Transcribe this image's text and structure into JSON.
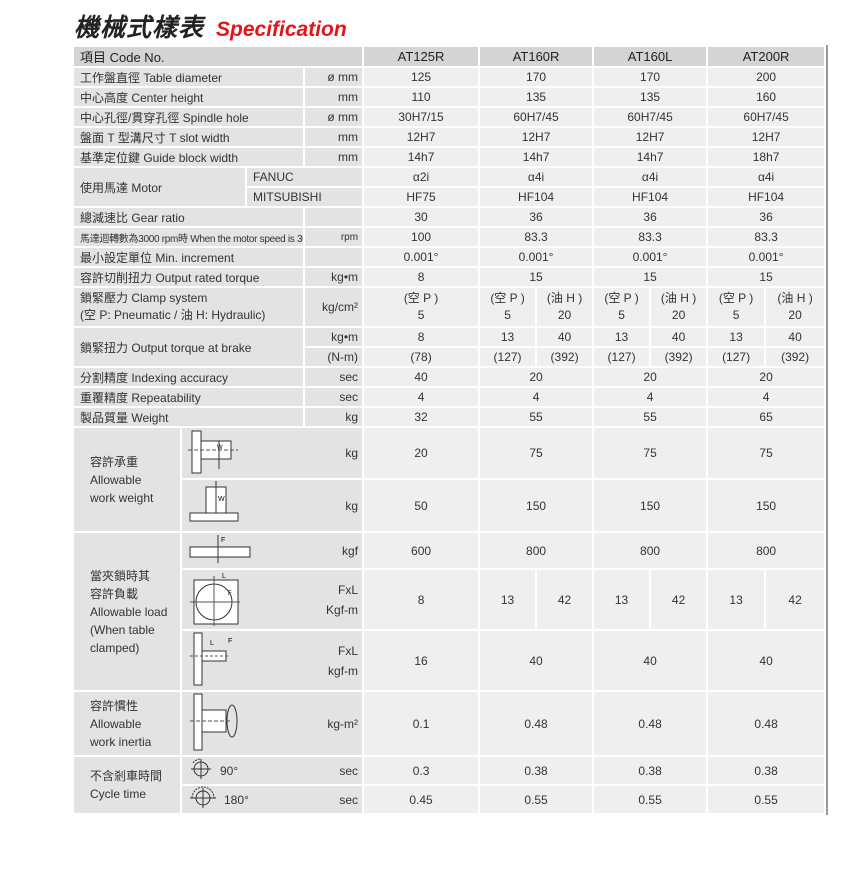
{
  "title": {
    "zh": "機械式樣表",
    "en": "Specification"
  },
  "header": {
    "label": "項目 Code No.",
    "models": [
      "AT125R",
      "AT160R",
      "AT160L",
      "AT200R"
    ]
  },
  "rows": [
    {
      "type": "simple",
      "label": "工作盤直徑 Table diameter",
      "unit": "ø mm",
      "values": [
        "125",
        "170",
        "170",
        "200"
      ]
    },
    {
      "type": "simple",
      "label": "中心高度 Center height",
      "unit": "mm",
      "values": [
        "110",
        "135",
        "135",
        "160"
      ]
    },
    {
      "type": "simple",
      "label": "中心孔徑/貫穿孔徑 Spindle hole",
      "unit": "ø mm",
      "values": [
        "30H7/15",
        "60H7/45",
        "60H7/45",
        "60H7/45"
      ]
    },
    {
      "type": "simple",
      "label": "盤面 T 型溝尺寸 T slot width",
      "unit": "mm",
      "values": [
        "12H7",
        "12H7",
        "12H7",
        "12H7"
      ]
    },
    {
      "type": "simple",
      "label": "基準定位鍵 Guide block width",
      "unit": "mm",
      "values": [
        "14h7",
        "14h7",
        "14h7",
        "18h7"
      ]
    },
    {
      "type": "motor",
      "label": "使用馬達 Motor",
      "sub": [
        {
          "label": "FANUC",
          "values": [
            "α2i",
            "α4i",
            "α4i",
            "α4i"
          ]
        },
        {
          "label": "MITSUBISHI",
          "values": [
            "HF75",
            "HF104",
            "HF104",
            "HF104"
          ]
        }
      ]
    },
    {
      "type": "simple",
      "label": "總減速比 Gear ratio",
      "unit": "",
      "values": [
        "30",
        "36",
        "36",
        "36"
      ]
    },
    {
      "type": "simple",
      "label": "馬達迴轉數為3000 rpm時 When the motor speed is 3000 rpm",
      "unit": "rpm",
      "values": [
        "100",
        "83.3",
        "83.3",
        "83.3"
      ],
      "small": true
    },
    {
      "type": "simple",
      "label": "最小設定單位 Min. increment",
      "unit": "",
      "values": [
        "0.001°",
        "0.001°",
        "0.001°",
        "0.001°"
      ]
    },
    {
      "type": "simple",
      "label": "容許切削扭力 Output rated torque",
      "unit": "kg•m",
      "values": [
        "8",
        "15",
        "15",
        "15"
      ]
    },
    {
      "type": "simple",
      "label": "鎖緊壓力  Clamp system\n(空 P: Pneumatic / 油 H: Hydraulic)",
      "unit": "kg/cm²",
      "values": [
        "(空 P )\n5",
        [
          "(空 P )\n5",
          "(油 H )\n20"
        ],
        [
          "(空 P )\n5",
          "(油 H )\n20"
        ],
        [
          "(空 P )\n5",
          "(油 H )\n20"
        ]
      ],
      "multi": true
    },
    {
      "type": "brake",
      "label": "鎖緊扭力 Output torque at brake",
      "sub": [
        {
          "unit": "kg•m",
          "values": [
            "8",
            [
              "13",
              "40"
            ],
            [
              "13",
              "40"
            ],
            [
              "13",
              "40"
            ]
          ]
        },
        {
          "unit": "(N-m)",
          "values": [
            "(78)",
            [
              "(127)",
              "(392)"
            ],
            [
              "(127)",
              "(392)"
            ],
            [
              "(127)",
              "(392)"
            ]
          ]
        }
      ]
    },
    {
      "type": "simple",
      "label": "分割精度 Indexing accuracy",
      "unit": "sec",
      "values": [
        "40",
        "20",
        "20",
        "20"
      ]
    },
    {
      "type": "simple",
      "label": "重覆精度 Repeatability",
      "unit": "sec",
      "values": [
        "4",
        "4",
        "4",
        "4"
      ]
    },
    {
      "type": "simple",
      "label": "製品質量 Weight",
      "unit": "kg",
      "values": [
        "32",
        "55",
        "55",
        "65"
      ]
    },
    {
      "type": "diagram",
      "label": "容許承重\nAllowable\nwork weight",
      "sub": [
        {
          "diagram": "horizontal-load-icon",
          "unit": "kg",
          "values": [
            "20",
            "75",
            "75",
            "75"
          ]
        },
        {
          "diagram": "vertical-load-icon",
          "unit": "kg",
          "values": [
            "50",
            "150",
            "150",
            "150"
          ]
        }
      ]
    },
    {
      "type": "diagram",
      "label": "當夾鎖時其\n容許負載\nAllowable load\n(When table\nclamped)",
      "sub": [
        {
          "diagram": "axial-force-icon",
          "unit": "kgf",
          "values": [
            "600",
            "800",
            "800",
            "800"
          ]
        },
        {
          "diagram": "tangential-moment-icon",
          "unit": "FxL\nKgf-m",
          "values": [
            "8",
            [
              "13",
              "42"
            ],
            [
              "13",
              "42"
            ],
            [
              "13",
              "42"
            ]
          ]
        },
        {
          "diagram": "overhang-moment-icon",
          "unit": "FxL\nkgf-m",
          "values": [
            "16",
            "40",
            "40",
            "40"
          ]
        }
      ]
    },
    {
      "type": "diagram",
      "label": "容許慣性\nAllowable\nwork inertia",
      "sub": [
        {
          "diagram": "inertia-icon",
          "unit": "kg-m²",
          "values": [
            "0.1",
            "0.48",
            "0.48",
            "0.48"
          ]
        }
      ]
    },
    {
      "type": "diagram",
      "label": "不含剎車時間\nCycle time",
      "sub": [
        {
          "diagram": "rotate-90-icon",
          "angle": "90°",
          "unit": "sec",
          "values": [
            "0.3",
            "0.38",
            "0.38",
            "0.38"
          ]
        },
        {
          "diagram": "rotate-180-icon",
          "angle": "180°",
          "unit": "sec",
          "values": [
            "0.45",
            "0.55",
            "0.55",
            "0.55"
          ]
        }
      ]
    }
  ]
}
